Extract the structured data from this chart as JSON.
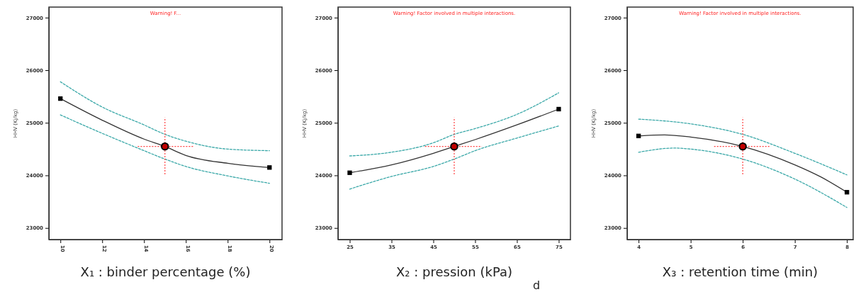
{
  "chart_data": [
    {
      "type": "line",
      "title": "Warning! F...",
      "xlabel": "X₁ : binder percentage (%)",
      "ylabel": "HHV (Kj/kg)",
      "xlim": [
        9.45,
        20.6
      ],
      "xticks": [
        10,
        12,
        14,
        16,
        18,
        20
      ],
      "ylim": [
        22780,
        27200
      ],
      "yticks": [
        23000,
        24000,
        25000,
        26000,
        27000
      ],
      "grid": false,
      "series": [
        {
          "color": "#333333",
          "line_style": "solid",
          "x": [
            10,
            12,
            14,
            15,
            16,
            18,
            20
          ],
          "values": [
            25460,
            25050,
            24690,
            24550,
            24380,
            24230,
            24150
          ]
        },
        {
          "color": "#3aa8a8",
          "line_style": "dashed",
          "x": [
            10,
            12,
            14,
            15,
            16,
            18,
            20
          ],
          "values": [
            25780,
            25300,
            24960,
            24780,
            24650,
            24500,
            24470
          ]
        },
        {
          "color": "#3aa8a8",
          "line_style": "dashed",
          "x": [
            10,
            12,
            14,
            15,
            16,
            18,
            20
          ],
          "values": [
            25150,
            24800,
            24470,
            24310,
            24170,
            23990,
            23850
          ]
        },
        {
          "type": "scatter",
          "color": "#000000",
          "marker": "square",
          "x": [
            10,
            20
          ],
          "values": [
            25460,
            24150
          ]
        },
        {
          "type": "scatter",
          "color": "#c00000",
          "marker": "circle",
          "x": [
            15
          ],
          "values": [
            24550
          ],
          "errors": [
            [
              24020,
              25100
            ]
          ],
          "xerrors": [
            [
              13.7,
              16.4
            ]
          ]
        }
      ]
    },
    {
      "type": "line",
      "title": "Warning! Factor involved in multiple interactions.",
      "xlabel": "X₂ : pression (kPa)",
      "ylabel": "HHV (Kj/kg)",
      "annotations": [
        "d"
      ],
      "xlim": [
        22.2,
        77.8
      ],
      "xticks": [
        25,
        35,
        45,
        55,
        65,
        75
      ],
      "ylim": [
        22780,
        27200
      ],
      "yticks": [
        23000,
        24000,
        25000,
        26000,
        27000
      ],
      "grid": false,
      "series": [
        {
          "color": "#333333",
          "line_style": "solid",
          "x": [
            25,
            35,
            45,
            50,
            55,
            65,
            75
          ],
          "values": [
            24050,
            24200,
            24420,
            24550,
            24680,
            24960,
            25260
          ]
        },
        {
          "color": "#3aa8a8",
          "line_style": "dashed",
          "x": [
            25,
            35,
            45,
            50,
            55,
            65,
            75
          ],
          "values": [
            24370,
            24440,
            24620,
            24780,
            24890,
            25160,
            25570
          ]
        },
        {
          "color": "#3aa8a8",
          "line_style": "dashed",
          "x": [
            25,
            35,
            45,
            50,
            55,
            65,
            75
          ],
          "values": [
            23740,
            23980,
            24170,
            24310,
            24470,
            24710,
            24940
          ]
        },
        {
          "type": "scatter",
          "color": "#000000",
          "marker": "square",
          "x": [
            25,
            75
          ],
          "values": [
            24050,
            25260
          ]
        },
        {
          "type": "scatter",
          "color": "#c00000",
          "marker": "circle",
          "x": [
            50
          ],
          "values": [
            24550
          ],
          "errors": [
            [
              24020,
              25100
            ]
          ],
          "xerrors": [
            [
              43,
              56.6
            ]
          ]
        }
      ]
    },
    {
      "type": "line",
      "title": "Warning! Factor involved in multiple interactions.",
      "xlabel": "X₃ : retention time (min)",
      "ylabel": "HHV (Kj/kg)",
      "xlim": [
        3.78,
        8.12
      ],
      "xticks": [
        4,
        5,
        6,
        7,
        8
      ],
      "ylim": [
        22780,
        27200
      ],
      "yticks": [
        23000,
        24000,
        25000,
        26000,
        27000
      ],
      "grid": false,
      "series": [
        {
          "color": "#333333",
          "line_style": "solid",
          "x": [
            4,
            4.5,
            5,
            6,
            7,
            7.5,
            8
          ],
          "values": [
            24750,
            24770,
            24730,
            24550,
            24200,
            23970,
            23680
          ]
        },
        {
          "color": "#3aa8a8",
          "line_style": "dashed",
          "x": [
            4,
            5,
            6,
            7,
            8
          ],
          "values": [
            25070,
            24980,
            24780,
            24420,
            24010
          ]
        },
        {
          "color": "#3aa8a8",
          "line_style": "dashed",
          "x": [
            4,
            4.7,
            5,
            6,
            7,
            8
          ],
          "values": [
            24440,
            24520,
            24500,
            24310,
            23930,
            23390
          ]
        },
        {
          "type": "scatter",
          "color": "#000000",
          "marker": "square",
          "x": [
            4,
            8
          ],
          "values": [
            24750,
            23680
          ]
        },
        {
          "type": "scatter",
          "color": "#c00000",
          "marker": "circle",
          "x": [
            6
          ],
          "values": [
            24550
          ],
          "errors": [
            [
              24020,
              25100
            ]
          ],
          "xerrors": [
            [
              5.45,
              6.54
            ]
          ]
        }
      ]
    }
  ]
}
